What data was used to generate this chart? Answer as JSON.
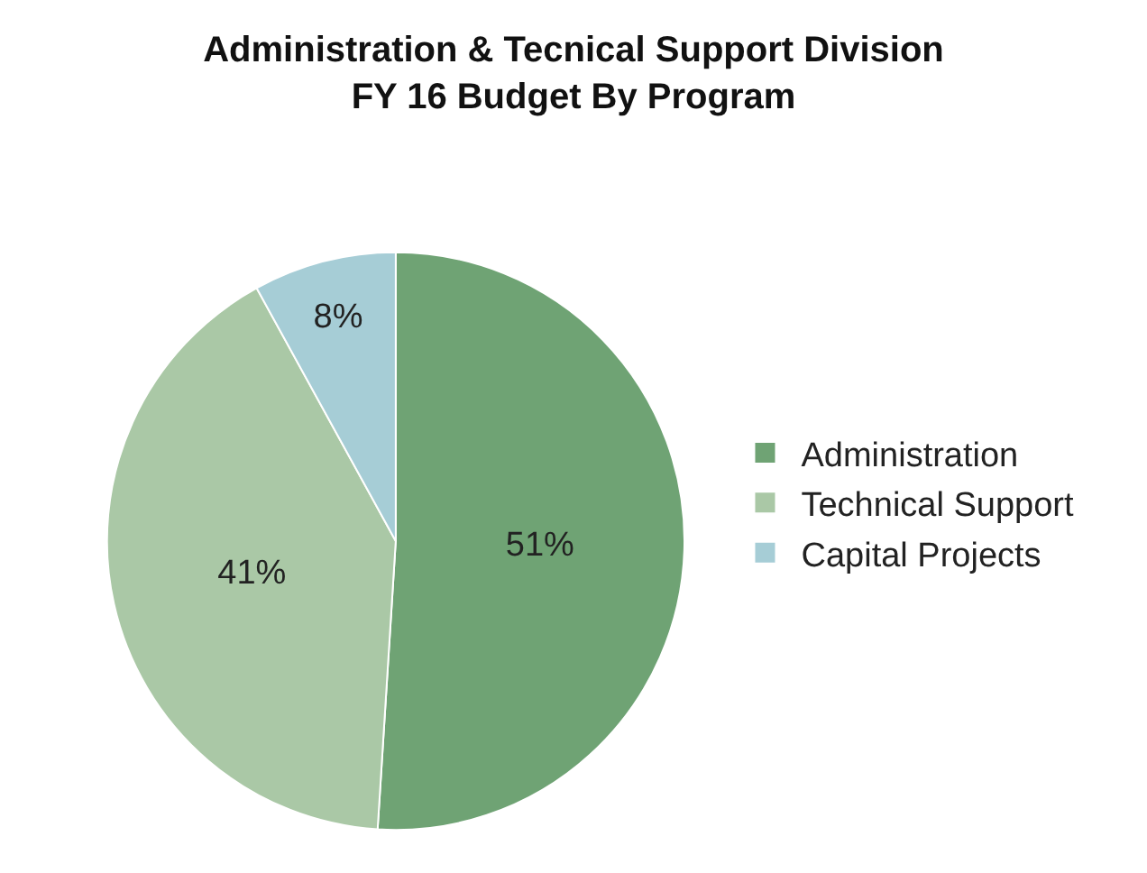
{
  "chart_data": {
    "type": "pie",
    "title": "Administration & Tecnical Support Division\nFY 16 Budget By Program",
    "categories": [
      "Administration",
      "Technical Support",
      "Capital Projects"
    ],
    "values": [
      51,
      41,
      8
    ],
    "value_labels": [
      "51%",
      "41%",
      "8%"
    ],
    "colors": [
      "#6fa374",
      "#aac8a6",
      "#a6cdd6"
    ],
    "legend": "right"
  }
}
